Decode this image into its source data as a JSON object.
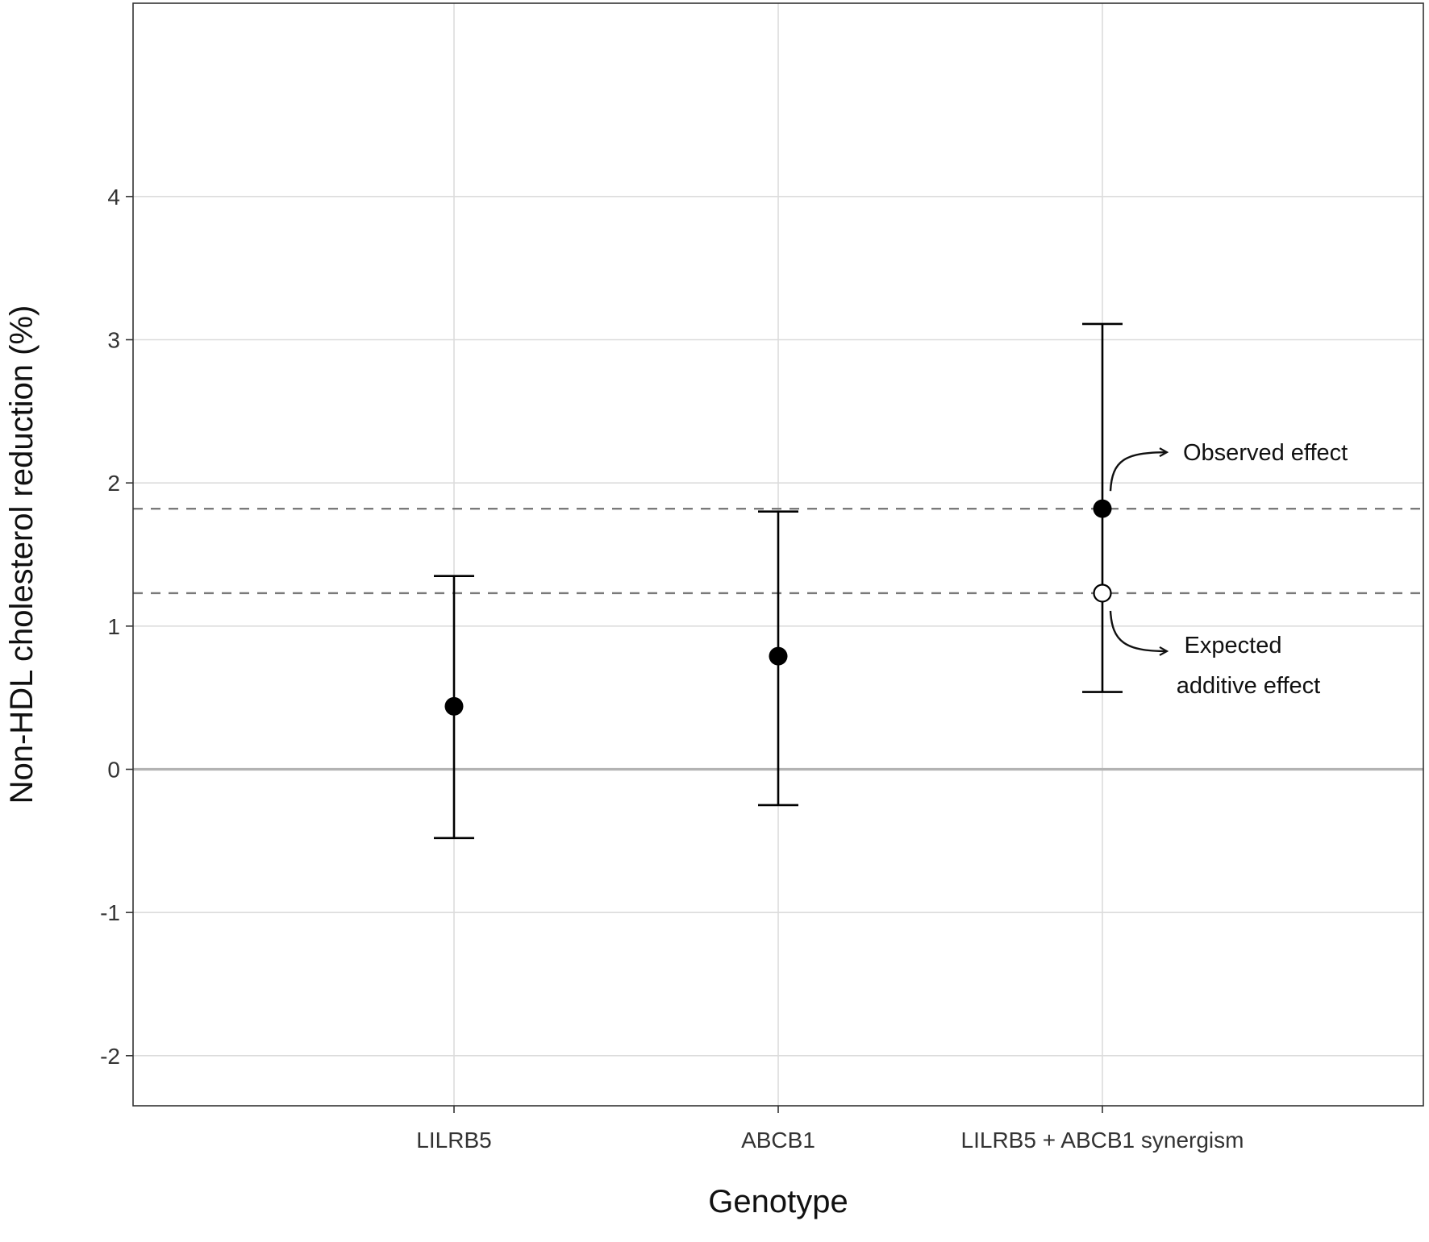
{
  "chart_data": {
    "type": "scatter",
    "subtype": "point-with-error-bars",
    "title": "",
    "xlabel": "Genotype",
    "ylabel": "Non-HDL cholesterol reduction (%)",
    "ylim": [
      -2.35,
      5.35
    ],
    "yticks": [
      -2,
      -1,
      0,
      1,
      2,
      3,
      4
    ],
    "ytick_labels": [
      "-2",
      "-1",
      "0",
      "1",
      "2",
      "3",
      "4"
    ],
    "grid": true,
    "legend": "none",
    "categories": [
      "LILRB5",
      "ABCB1",
      "LILRB5 + ABCB1 synergism"
    ],
    "points": [
      {
        "category": "LILRB5",
        "value": 0.44,
        "lower": -0.48,
        "upper": 1.35,
        "marker": "filled"
      },
      {
        "category": "ABCB1",
        "value": 0.79,
        "lower": -0.25,
        "upper": 1.8,
        "marker": "filled"
      },
      {
        "category": "LILRB5 + ABCB1 synergism",
        "value": 1.82,
        "lower": 0.54,
        "upper": 3.11,
        "marker": "filled"
      },
      {
        "category": "LILRB5 + ABCB1 synergism",
        "value": 1.23,
        "marker": "open"
      }
    ],
    "reference_lines": [
      {
        "value": 1.82,
        "style": "dashed"
      },
      {
        "value": 1.23,
        "style": "dashed"
      },
      {
        "value": 0,
        "style": "solid"
      }
    ],
    "annotations": [
      {
        "lines": [
          "Observed effect"
        ],
        "points_to": 1.82
      },
      {
        "lines": [
          "Expected",
          "additive effect"
        ],
        "points_to": 1.23
      }
    ],
    "colors": {
      "points": "#000000",
      "open_point_fill": "#ffffff",
      "grid_major": "#dcdcdc",
      "grid_minor": "#ececec",
      "zero_line": "#b3b3b3",
      "dashed_lines": "#7a7a7a",
      "panel_border": "#333333"
    }
  }
}
